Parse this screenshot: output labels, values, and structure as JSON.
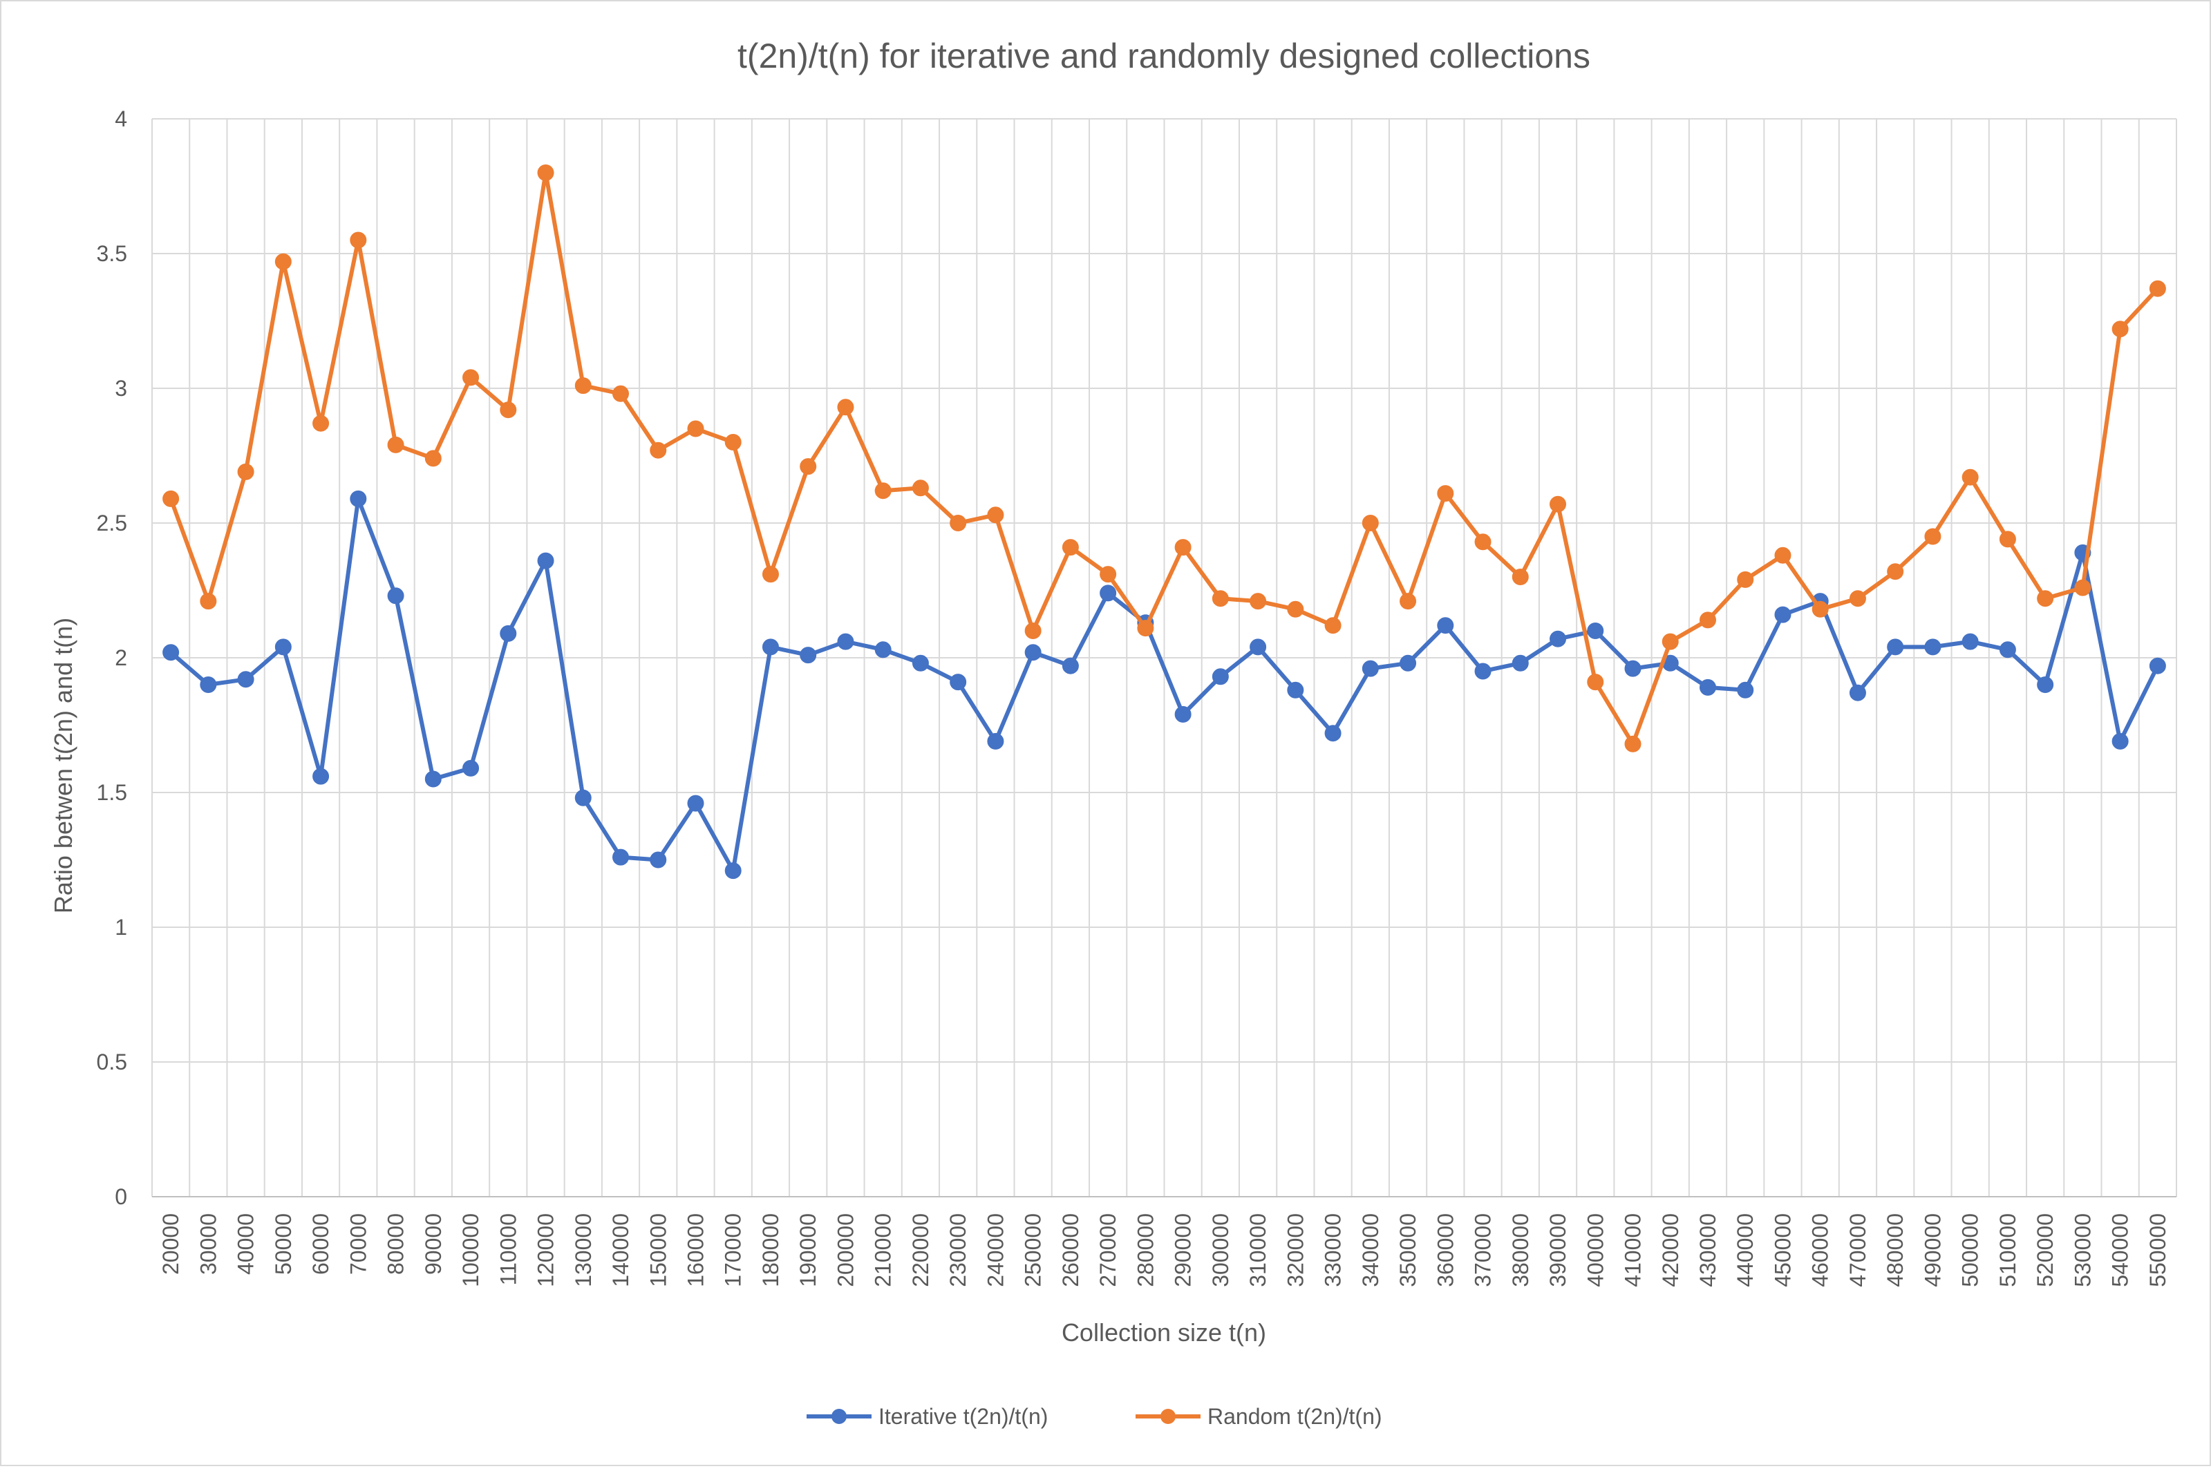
{
  "chart_data": {
    "type": "line",
    "title": "t(2n)/t(n) for iterative and randomly designed collections",
    "xlabel": "Collection size t(n)",
    "ylabel": "Ratio betwen t(2n) and t(n)",
    "ylim": [
      0,
      4
    ],
    "yticks": [
      "0",
      "0.5",
      "1",
      "1.5",
      "2",
      "2.5",
      "3",
      "3.5",
      "4"
    ],
    "grid": true,
    "legend_position": "bottom",
    "categories": [
      "20000",
      "30000",
      "40000",
      "50000",
      "60000",
      "70000",
      "80000",
      "90000",
      "100000",
      "110000",
      "120000",
      "130000",
      "140000",
      "150000",
      "160000",
      "170000",
      "180000",
      "190000",
      "200000",
      "210000",
      "220000",
      "230000",
      "240000",
      "250000",
      "260000",
      "270000",
      "280000",
      "290000",
      "300000",
      "310000",
      "320000",
      "330000",
      "340000",
      "350000",
      "360000",
      "370000",
      "380000",
      "390000",
      "400000",
      "410000",
      "420000",
      "430000",
      "440000",
      "450000",
      "460000",
      "470000",
      "480000",
      "490000",
      "500000",
      "510000",
      "520000",
      "530000",
      "540000",
      "550000"
    ],
    "series": [
      {
        "name": "Iterative t(2n)/t(n)",
        "color": "#4472c4",
        "values": [
          2.02,
          1.9,
          1.92,
          2.04,
          1.56,
          2.59,
          2.23,
          1.55,
          1.59,
          2.09,
          2.36,
          1.48,
          1.26,
          1.25,
          1.46,
          1.21,
          2.04,
          2.01,
          2.06,
          2.03,
          1.98,
          1.91,
          1.69,
          2.02,
          1.97,
          2.24,
          2.13,
          1.79,
          1.93,
          2.04,
          1.88,
          1.72,
          1.96,
          1.98,
          2.12,
          1.95,
          1.98,
          2.07,
          2.1,
          1.96,
          1.98,
          1.89,
          1.88,
          2.16,
          2.21,
          1.87,
          2.04,
          2.04,
          2.06,
          2.03,
          1.9,
          2.39,
          1.69,
          1.97
        ]
      },
      {
        "name": "Random t(2n)/t(n)",
        "color": "#ed7d31",
        "values": [
          2.59,
          2.21,
          2.69,
          3.47,
          2.87,
          3.55,
          2.79,
          2.74,
          3.04,
          2.92,
          3.8,
          3.01,
          2.98,
          2.77,
          2.85,
          2.8,
          2.31,
          2.71,
          2.93,
          2.62,
          2.63,
          2.5,
          2.53,
          2.1,
          2.41,
          2.31,
          2.11,
          2.41,
          2.22,
          2.21,
          2.18,
          2.12,
          2.5,
          2.21,
          2.61,
          2.43,
          2.3,
          2.57,
          1.91,
          1.68,
          2.06,
          2.14,
          2.29,
          2.38,
          2.18,
          2.22,
          2.32,
          2.45,
          2.67,
          2.44,
          2.22,
          2.26,
          3.22,
          3.37
        ]
      }
    ]
  }
}
